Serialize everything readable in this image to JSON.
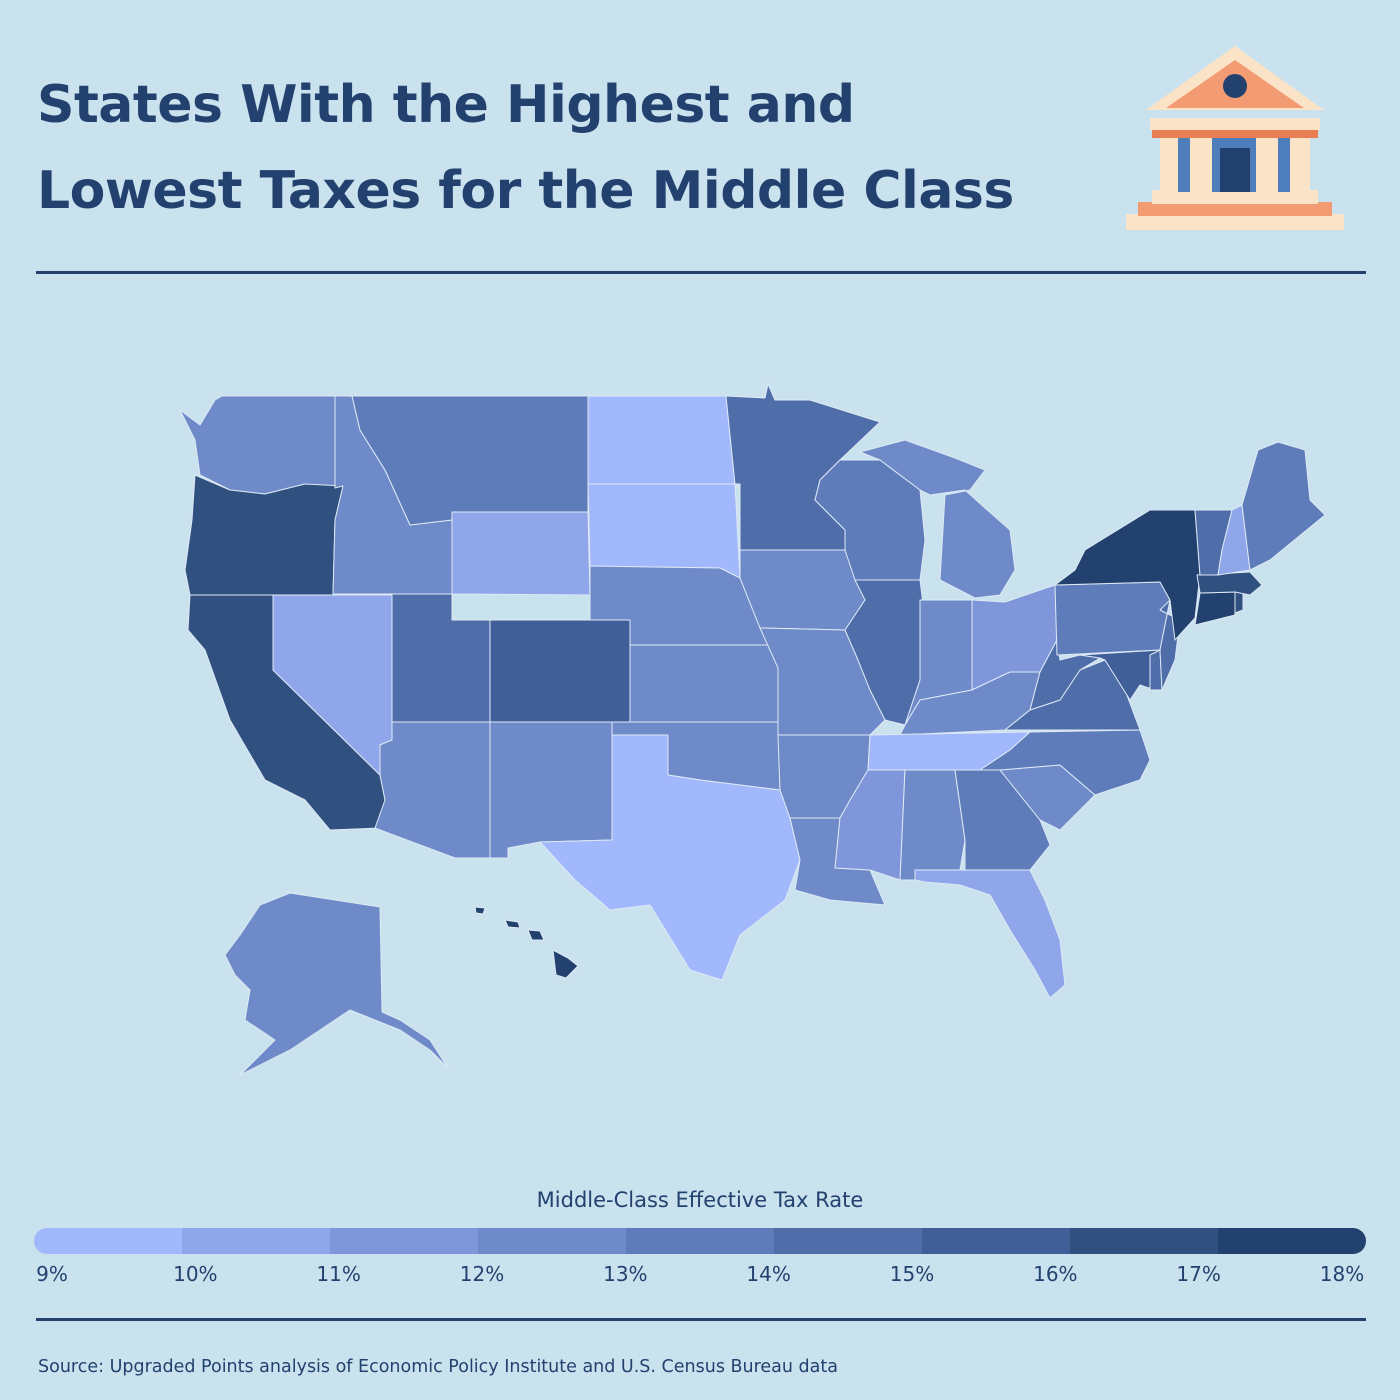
{
  "title": "States With the Highest and Lowest Taxes for the Middle Class",
  "legend": {
    "title": "Middle-Class Effective Tax Rate",
    "ticks": [
      "9%",
      "10%",
      "11%",
      "12%",
      "13%",
      "14%",
      "15%",
      "16%",
      "17%",
      "18%"
    ],
    "colors": [
      "#a2b8fc",
      "#8fa7ea",
      "#7f97da",
      "#6f8ac9",
      "#5f7cba",
      "#4f6da9",
      "#405e97",
      "#30507f",
      "#23416e"
    ]
  },
  "source": "Source: Upgraded Points analysis of Economic Policy Institute and U.S. Census Bureau data",
  "chart_data": {
    "type": "choropleth",
    "value_unit": "%",
    "scale_range": [
      9,
      18
    ],
    "bins": [
      {
        "from": 9,
        "to": 10,
        "color": "#a2b8fc",
        "states": [
          "ND",
          "SD",
          "TX",
          "TN"
        ]
      },
      {
        "from": 10,
        "to": 11,
        "color": "#8fa7ea",
        "states": [
          "WY",
          "NV",
          "FL",
          "NH"
        ]
      },
      {
        "from": 11,
        "to": 12,
        "color": "#7f97da",
        "states": [
          "OH",
          "MS"
        ]
      },
      {
        "from": 12,
        "to": 13,
        "color": "#6f8ac9",
        "states": [
          "WA",
          "ID",
          "NE",
          "KS",
          "NM",
          "AZ",
          "IA",
          "MO",
          "AR",
          "OK",
          "IN",
          "KY",
          "MI",
          "AL",
          "AK",
          "LA",
          "SC"
        ]
      },
      {
        "from": 13,
        "to": 14,
        "color": "#5f7cba",
        "states": [
          "MT",
          "WI",
          "PA",
          "GA",
          "NC",
          "ME"
        ]
      },
      {
        "from": 14,
        "to": 15,
        "color": "#4f6da9",
        "states": [
          "MN",
          "UT",
          "IL",
          "VA",
          "WV",
          "DE",
          "NJ",
          "VT"
        ]
      },
      {
        "from": 15,
        "to": 16,
        "color": "#405e97",
        "states": [
          "CO",
          "MD"
        ]
      },
      {
        "from": 16,
        "to": 17,
        "color": "#30507f",
        "states": [
          "OR",
          "CA",
          "MA",
          "RI"
        ]
      },
      {
        "from": 17,
        "to": 18,
        "color": "#23416e",
        "states": [
          "NY",
          "CT",
          "HI"
        ]
      }
    ]
  }
}
